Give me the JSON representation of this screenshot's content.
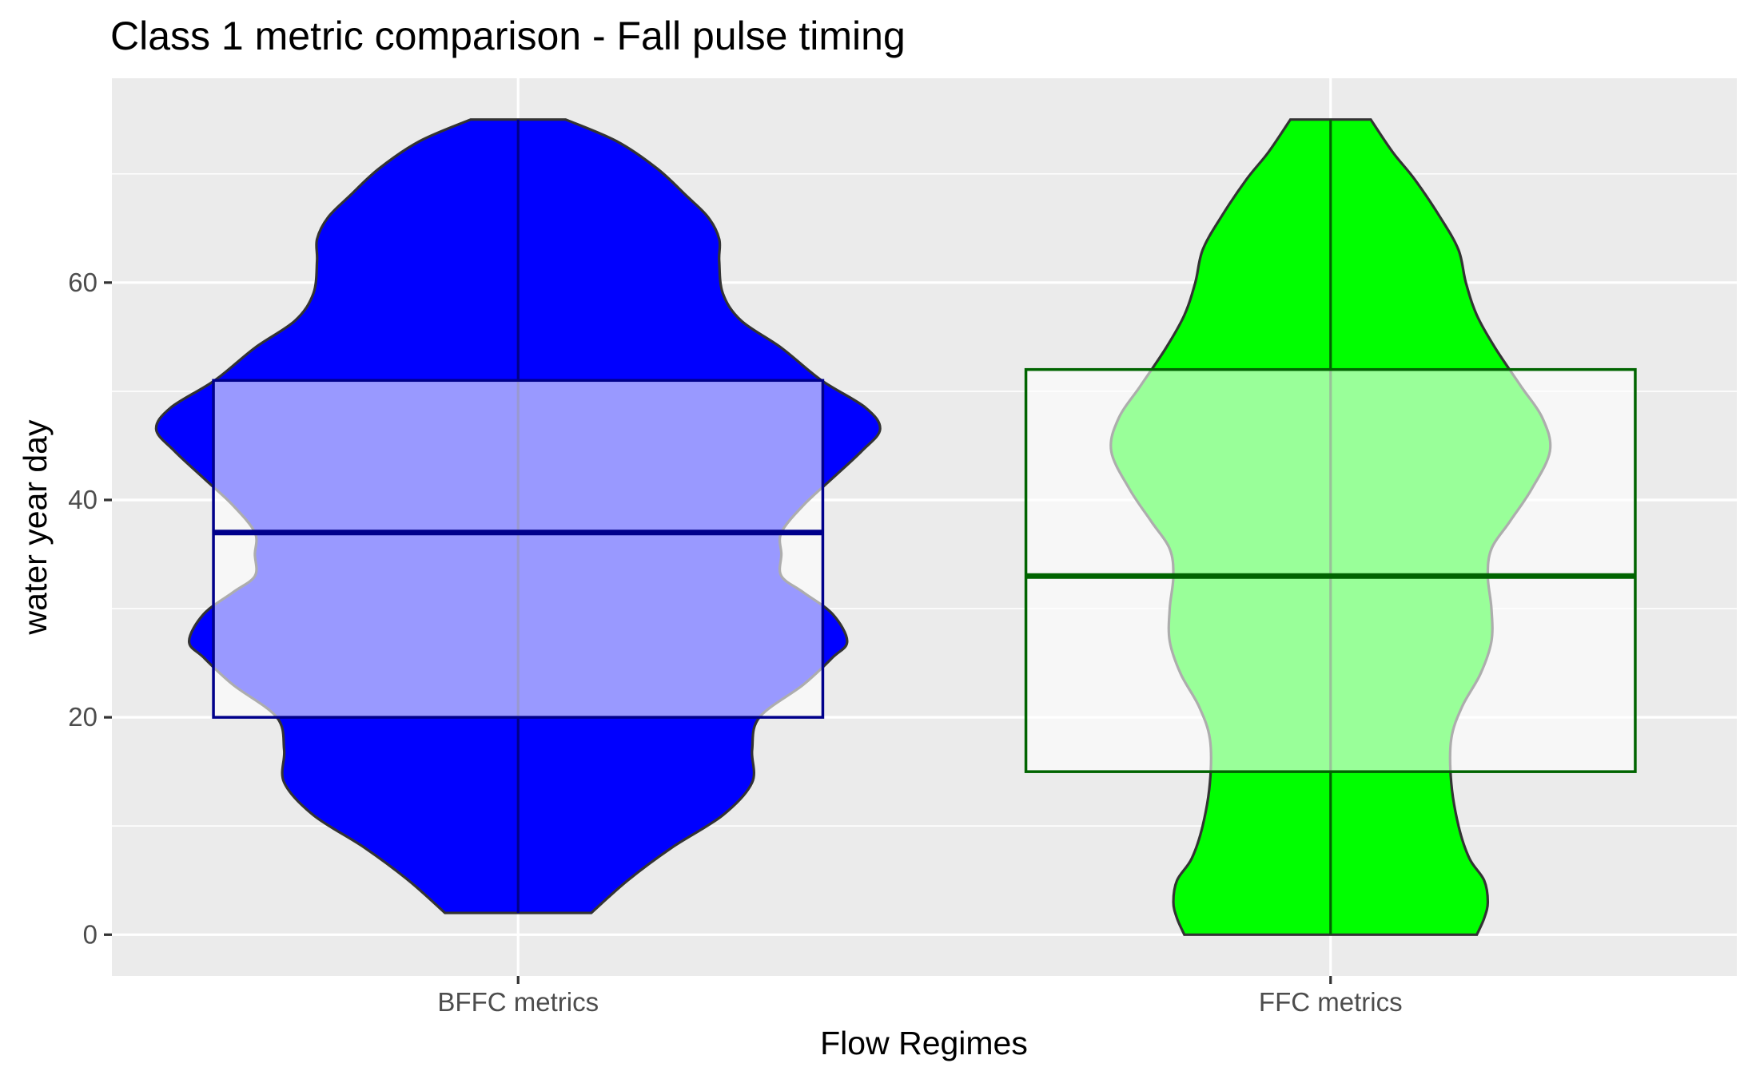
{
  "chart_data": {
    "type": "violin",
    "title": "Class 1 metric comparison - Fall pulse timing",
    "xlabel": "Flow Regimes",
    "ylabel": "water year day",
    "categories": [
      "BFFC metrics",
      "FFC metrics"
    ],
    "y_ticks": [
      0,
      20,
      40,
      60
    ],
    "ylim": [
      -3.8,
      78.8
    ],
    "grid": true,
    "legend": "none",
    "series": [
      {
        "category": "BFFC metrics",
        "fill_color": "#0000ff",
        "box_fill": "#9b9bff",
        "box_line": "#00008b",
        "min": 2,
        "q1": 20,
        "median": 37,
        "q3": 51,
        "max": 75,
        "density_profile": [
          [
            2,
            0.2
          ],
          [
            5,
            0.3
          ],
          [
            8,
            0.42
          ],
          [
            11,
            0.56
          ],
          [
            14,
            0.64
          ],
          [
            17,
            0.64
          ],
          [
            20,
            0.66
          ],
          [
            23,
            0.78
          ],
          [
            25.5,
            0.86
          ],
          [
            27,
            0.9
          ],
          [
            29.5,
            0.86
          ],
          [
            31.5,
            0.78
          ],
          [
            33,
            0.72
          ],
          [
            35,
            0.72
          ],
          [
            37,
            0.72
          ],
          [
            39.5,
            0.78
          ],
          [
            42,
            0.86
          ],
          [
            44.5,
            0.94
          ],
          [
            46.5,
            0.99
          ],
          [
            48.5,
            0.95
          ],
          [
            51,
            0.83
          ],
          [
            54,
            0.72
          ],
          [
            56.5,
            0.61
          ],
          [
            59,
            0.56
          ],
          [
            62,
            0.55
          ],
          [
            64,
            0.55
          ],
          [
            66,
            0.52
          ],
          [
            68,
            0.46
          ],
          [
            70.5,
            0.38
          ],
          [
            73,
            0.27
          ],
          [
            75,
            0.13
          ]
        ]
      },
      {
        "category": "FFC metrics",
        "fill_color": "#00ff00",
        "box_fill": "#9bff9b",
        "box_line": "#006400",
        "min": 0,
        "q1": 15,
        "median": 33,
        "q3": 52,
        "max": 75,
        "density_profile": [
          [
            0,
            0.4
          ],
          [
            1.5,
            0.42
          ],
          [
            3,
            0.43
          ],
          [
            5,
            0.42
          ],
          [
            7,
            0.38
          ],
          [
            10,
            0.35
          ],
          [
            14,
            0.33
          ],
          [
            18,
            0.33
          ],
          [
            21,
            0.36
          ],
          [
            24,
            0.41
          ],
          [
            27,
            0.44
          ],
          [
            30,
            0.44
          ],
          [
            33,
            0.43
          ],
          [
            35.5,
            0.44
          ],
          [
            38,
            0.49
          ],
          [
            41,
            0.55
          ],
          [
            44.5,
            0.6
          ],
          [
            47.5,
            0.58
          ],
          [
            50.5,
            0.52
          ],
          [
            54,
            0.45
          ],
          [
            57,
            0.4
          ],
          [
            60,
            0.37
          ],
          [
            63,
            0.35
          ],
          [
            66,
            0.3
          ],
          [
            69.5,
            0.23
          ],
          [
            72,
            0.17
          ],
          [
            75,
            0.11
          ]
        ]
      }
    ]
  }
}
